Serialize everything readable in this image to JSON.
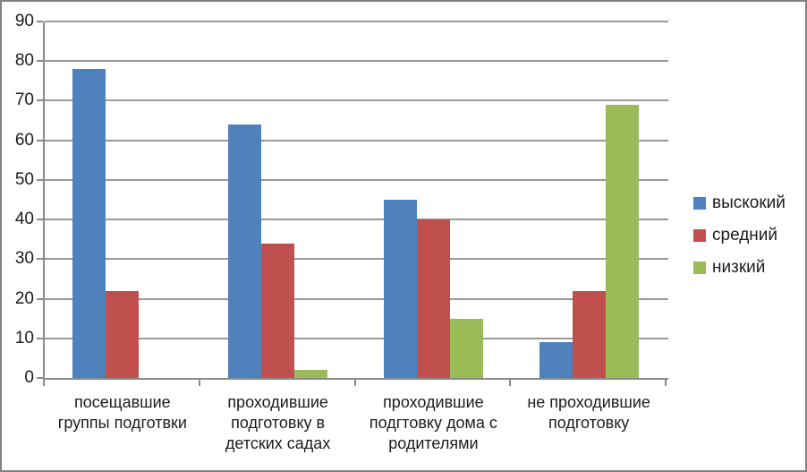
{
  "chart_data": {
    "type": "bar",
    "title": "",
    "xlabel": "",
    "ylabel": "",
    "categories": [
      "посещавшие группы подготвки",
      "проходившие подготовку в детских садах",
      "проходившие подгтовку дома с родителями",
      "не проходившие подготовку"
    ],
    "category_label_lines": [
      [
        "посещавшие",
        "группы подготвки"
      ],
      [
        "проходившие",
        "подготовку в",
        "детских садах"
      ],
      [
        "проходившие",
        "подгтовку дома с",
        "родителями"
      ],
      [
        "не проходившие",
        "подготовку"
      ]
    ],
    "series": [
      {
        "name": "выскокий",
        "color": "#4f81bd",
        "values": [
          78,
          64,
          45,
          9
        ]
      },
      {
        "name": "средний",
        "color": "#c0504d",
        "values": [
          22,
          34,
          40,
          22
        ]
      },
      {
        "name": "низкий",
        "color": "#9bbb59",
        "values": [
          0,
          2,
          15,
          69
        ]
      }
    ],
    "ylim": [
      0,
      90
    ],
    "ytick_step": 10,
    "yticks": [
      0,
      10,
      20,
      30,
      40,
      50,
      60,
      70,
      80,
      90
    ],
    "grid": "horizontal",
    "legend_position": "right",
    "style": {
      "gridline_color": "#9a9a9a",
      "axis_color": "#8a8a8a",
      "text_color": "#1c1c1c",
      "background": "#ffffff",
      "frame_border_color": "#818181"
    }
  }
}
